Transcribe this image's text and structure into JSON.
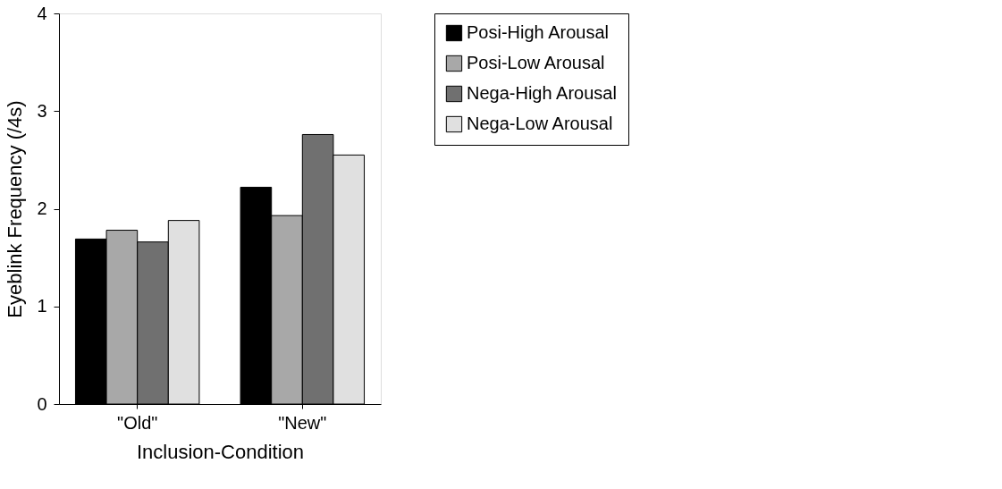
{
  "chart_data": {
    "type": "bar",
    "xlabel": "Inclusion-Condition",
    "ylabel": "Eyeblink Frequency (/4s)",
    "categories": [
      "\"Old\"",
      "\"New\""
    ],
    "series": [
      {
        "name": "Posi-High Arousal",
        "color": "#000000",
        "values": [
          1.69,
          2.22
        ]
      },
      {
        "name": "Posi-Low Arousal",
        "color": "#a8a8a8",
        "values": [
          1.78,
          1.93
        ]
      },
      {
        "name": "Nega-High Arousal",
        "color": "#707070",
        "values": [
          1.66,
          2.76
        ]
      },
      {
        "name": "Nega-Low Arousal",
        "color": "#e0e0e0",
        "values": [
          1.88,
          2.55
        ]
      }
    ],
    "ylim": [
      0,
      4
    ],
    "yticks": [
      0,
      1,
      2,
      3,
      4
    ],
    "grid": false,
    "legend": "top right"
  }
}
